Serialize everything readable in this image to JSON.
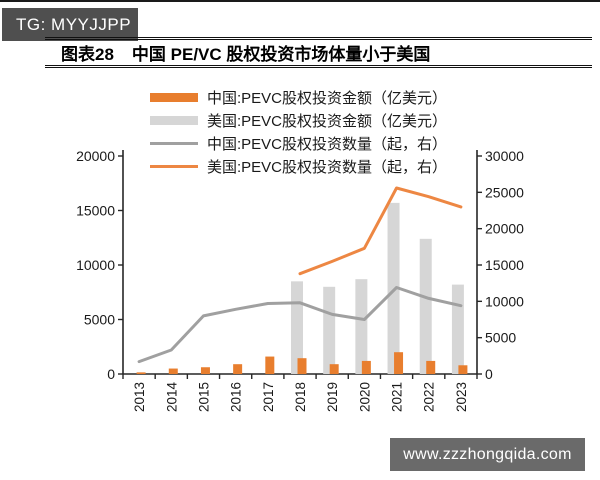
{
  "page": {
    "tg_badge": "TG: MYYJJPP",
    "watermark": "www.zzzhongqida.com"
  },
  "title": {
    "label": "图表28",
    "text": "中国 PE/VC 股权投资市场体量小于美国"
  },
  "colors": {
    "china_bar": "#e87e2e",
    "us_bar": "#d6d6d6",
    "china_line": "#a0a0a0",
    "us_line": "#ed8743",
    "axis": "#262626",
    "tick_text": "#1a1a1a",
    "badge_bg": "#4f4f4f",
    "watermark_bg": "#6a6a6a"
  },
  "chart_data": {
    "type": "bar",
    "subtype": "combo-bar-line-dual-axis",
    "categories": [
      "2013",
      "2014",
      "2015",
      "2016",
      "2017",
      "2018",
      "2019",
      "2020",
      "2021",
      "2022",
      "2023"
    ],
    "series": [
      {
        "name": "中国:PEVC股权投资金额（亿美元）",
        "kind": "bar",
        "axis": "left",
        "color": "#e87e2e",
        "values": [
          150,
          500,
          620,
          900,
          1600,
          1450,
          900,
          1200,
          2000,
          1200,
          800
        ]
      },
      {
        "name": "美国:PEVC股权投资金额（亿美元）",
        "kind": "bar",
        "axis": "left",
        "color": "#d6d6d6",
        "values": [
          null,
          null,
          null,
          null,
          null,
          8500,
          8000,
          8700,
          15700,
          12400,
          8200
        ]
      },
      {
        "name": "中国:PEVC股权投资数量（起，右）",
        "kind": "line",
        "axis": "right",
        "color": "#a0a0a0",
        "values": [
          1700,
          3300,
          8000,
          8900,
          9700,
          9800,
          8200,
          7500,
          11900,
          10400,
          9400
        ]
      },
      {
        "name": "美国:PEVC股权投资数量（起，右）",
        "kind": "line",
        "axis": "right",
        "color": "#ed8743",
        "values": [
          null,
          null,
          null,
          null,
          null,
          13800,
          15500,
          17300,
          25600,
          24400,
          23000
        ]
      }
    ],
    "left_axis": {
      "min": 0,
      "max": 20000,
      "step": 5000,
      "ticks": [
        "0",
        "5000",
        "10000",
        "15000",
        "20000"
      ]
    },
    "right_axis": {
      "min": 0,
      "max": 30000,
      "step": 5000,
      "ticks": [
        "0",
        "5000",
        "10000",
        "15000",
        "20000",
        "25000",
        "30000"
      ]
    },
    "grid": false,
    "legend_position": "top",
    "x_tick_label_rotation": -90
  }
}
